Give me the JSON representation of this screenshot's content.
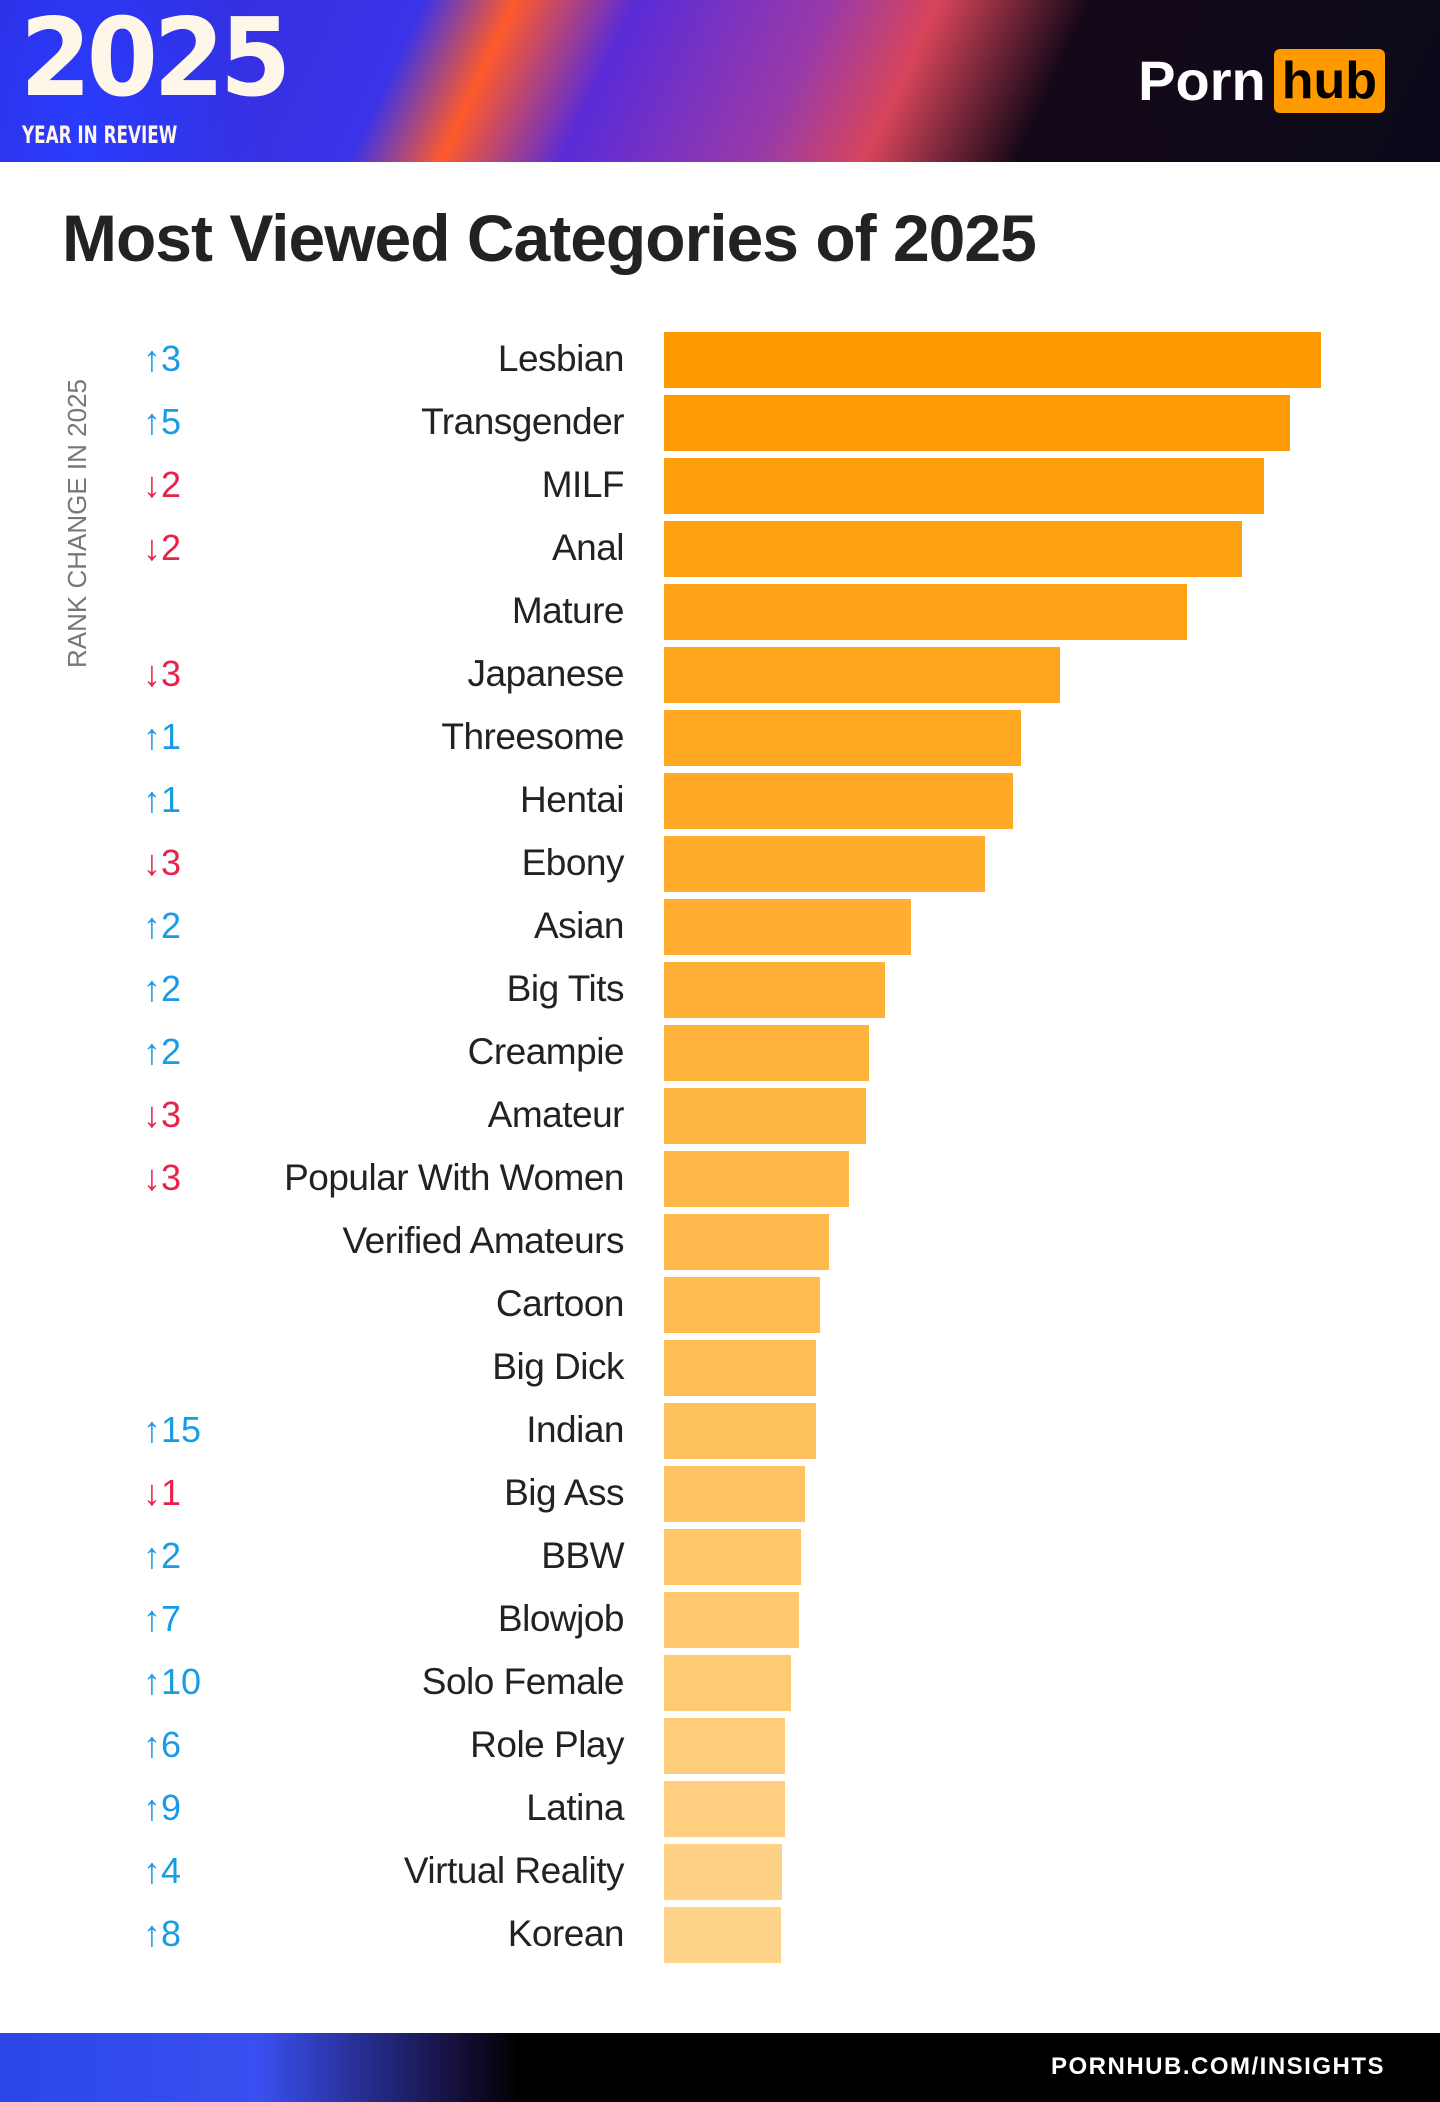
{
  "header": {
    "year": "2025",
    "subtitle": "YEAR IN REVIEW",
    "logo_left": "Porn",
    "logo_right": "hub"
  },
  "footer": {
    "link": "PORNHUB.COM/INSIGHTS"
  },
  "colors": {
    "bar_top": "#ff9900",
    "bar_bottom": "#ffd38a",
    "up": "#1a9be6",
    "down": "#e8224a",
    "brand": "#ff9900"
  },
  "chart_data": {
    "type": "bar",
    "orientation": "horizontal",
    "title": "Most Viewed Categories of 2025",
    "change_axis_label": "RANK CHANGE IN 2025",
    "value_note": "relative bar length, top = 100 (no axis printed)",
    "categories": [
      "Lesbian",
      "Transgender",
      "MILF",
      "Anal",
      "Mature",
      "Japanese",
      "Threesome",
      "Hentai",
      "Ebony",
      "Asian",
      "Big Tits",
      "Creampie",
      "Amateur",
      "Popular With Women",
      "Verified Amateurs",
      "Cartoon",
      "Big Dick",
      "Indian",
      "Big Ass",
      "BBW",
      "Blowjob",
      "Solo Female",
      "Role Play",
      "Latina",
      "Virtual Reality",
      "Korean"
    ],
    "values": [
      100,
      95.3,
      91.4,
      88,
      79.6,
      60.2,
      54.3,
      53.1,
      48.8,
      37.6,
      33.7,
      31.2,
      30.8,
      28.2,
      25.1,
      23.7,
      23.1,
      23.1,
      21.4,
      20.8,
      20.6,
      19.4,
      18.4,
      18.4,
      18,
      17.8
    ],
    "rank_change": [
      3,
      5,
      -2,
      -2,
      null,
      -3,
      1,
      1,
      -3,
      2,
      2,
      2,
      -3,
      -3,
      null,
      null,
      null,
      15,
      -1,
      2,
      7,
      10,
      6,
      9,
      4,
      8
    ],
    "rank_change_labels": [
      "↑3",
      "↑5",
      "↓2",
      "↓2",
      "",
      "↓3",
      "↑1",
      "↑1",
      "↓3",
      "↑2",
      "↑2",
      "↑2",
      "↓3",
      "↓3",
      "",
      "",
      "",
      "↑15",
      "↓1",
      "↑2",
      "↑7",
      "↑10",
      "↑6",
      "↑9",
      "↑4",
      "↑8"
    ]
  }
}
